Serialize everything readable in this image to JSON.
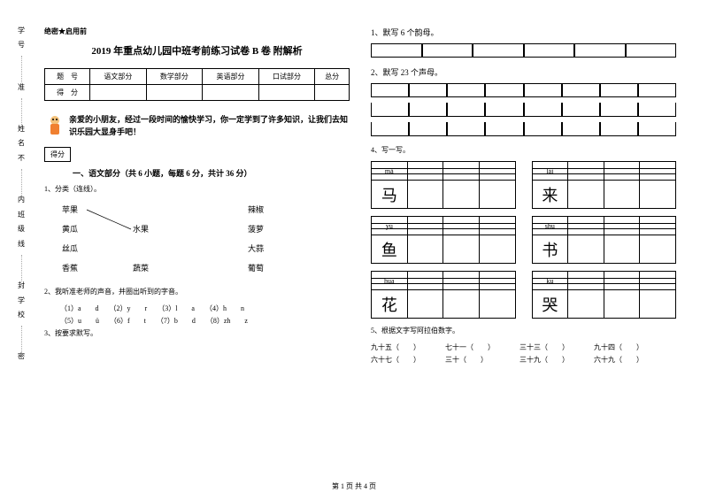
{
  "binding_labels": [
    "学号",
    "准",
    "姓名",
    "不",
    "内",
    "班级",
    "线",
    "封",
    "学校",
    "密"
  ],
  "secret": "绝密★启用前",
  "title": "2019 年重点幼儿园中班考前练习试卷 B 卷 附解析",
  "score_headers": [
    "题　号",
    "语文部分",
    "数学部分",
    "英语部分",
    "口试部分",
    "总分"
  ],
  "score_row2": "得　分",
  "intro": "亲爱的小朋友，经过一段时间的愉快学习，你一定学到了许多知识，让我们去知识乐园大显身手吧！",
  "score_box_label": "得分",
  "section1_title": "一、语文部分（共 6 小题，每题 6 分，共计 36 分）",
  "q1": "1、分类（连线）。",
  "match_left": [
    "苹果",
    "黄瓜",
    "丝瓜",
    "香蕉"
  ],
  "match_mid_top": "水果",
  "match_mid_bot": "蔬菜",
  "match_right": [
    "辣椒",
    "菠萝",
    "大蒜",
    "葡萄"
  ],
  "q2": "2、我听准老师的声音，并圈出听到的字音。",
  "sounds": [
    "（1）a　　d　　（2）y　　r　　（3）l　　a　　（4）h　　n",
    "（5）u　　ü　　（6）f　　t　　（7）b　　d　　（8）zh　　z"
  ],
  "q3": "3、按要求默写。",
  "right_h1": "1、默写 6 个韵母。",
  "right_h2": "2、默写 23 个声母。",
  "q4": "4、写一写。",
  "pinyin_rows": [
    [
      {
        "py": "mǎ",
        "ch": "马"
      },
      {
        "py": "lái",
        "ch": "来"
      }
    ],
    [
      {
        "py": "yú",
        "ch": "鱼"
      },
      {
        "py": "shū",
        "ch": "书"
      }
    ],
    [
      {
        "py": "huā",
        "ch": "花"
      },
      {
        "py": "kū",
        "ch": "哭"
      }
    ]
  ],
  "q5": "5、根据文字写阿拉伯数字。",
  "nums": [
    [
      "九十五（　　）",
      "七十一（　　）",
      "三十三（　　）",
      "九十四（　　）"
    ],
    [
      "六十七（　　）",
      "三十（　　）",
      "三十九（　　）",
      "六十九（　　）"
    ]
  ],
  "footer": "第 1 页 共 4 页"
}
